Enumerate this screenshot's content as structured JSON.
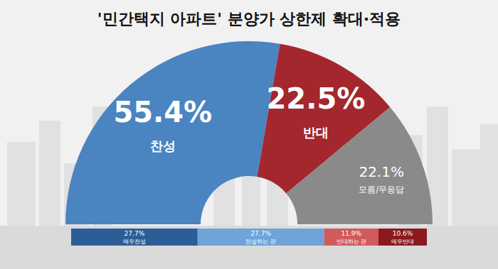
{
  "chart_data": [
    {
      "type": "pie",
      "title": "'민간택지 아파트' 분양가 상한제 확대·적용",
      "categories": [
        "찬성",
        "반대",
        "모름/무응답"
      ],
      "values": [
        55.4,
        22.5,
        22.1
      ],
      "value_labels": [
        "55.4%",
        "22.5%",
        "22.1%"
      ],
      "colors": [
        "#4a84c1",
        "#a3272d",
        "#8a8a8a"
      ],
      "data_labels": true
    },
    {
      "type": "bar",
      "orientation": "horizontal",
      "stacked": true,
      "data_labels": true,
      "tick_labels": false,
      "categories": [
        null
      ],
      "xlim": [
        0,
        77.9
      ],
      "series": [
        {
          "name": "매우찬성",
          "color": "#2b5e97",
          "values": [
            27.7
          ],
          "value_labels": [
            "27.7%"
          ]
        },
        {
          "name": "찬성하는 편",
          "color": "#6fa4d9",
          "values": [
            27.7
          ],
          "value_labels": [
            "27.7%"
          ]
        },
        {
          "name": "반대하는 편",
          "color": "#d05a5c",
          "values": [
            11.9
          ],
          "value_labels": [
            "11.9%"
          ]
        },
        {
          "name": "매우반대",
          "color": "#8a1a1e",
          "values": [
            10.6
          ],
          "value_labels": [
            "10.6%"
          ]
        }
      ]
    }
  ]
}
